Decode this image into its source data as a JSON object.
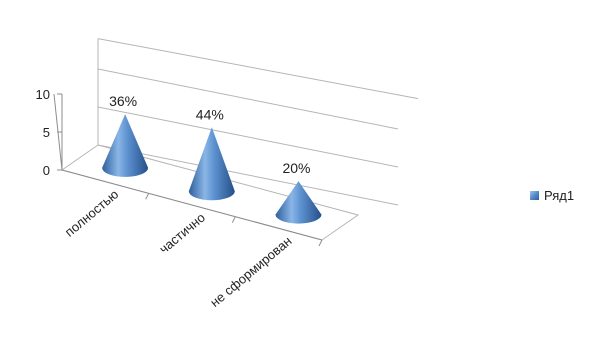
{
  "chart_data": {
    "type": "bar",
    "style": "3d-cone",
    "categories": [
      "полностью",
      "частично",
      "не сформирован"
    ],
    "series": [
      {
        "name": "Ряд1",
        "values": [
          36,
          44,
          20
        ],
        "data_labels": [
          "36%",
          "44%",
          "20%"
        ]
      }
    ],
    "ylim": [
      0,
      10
    ],
    "y_ticks": [
      "0",
      "5",
      "10"
    ],
    "grid": true,
    "legend_position": "right",
    "colors": {
      "series": "#4f86c6",
      "axis": "#8c8c8c",
      "grid": "#b5b5b5",
      "text": "#222222"
    }
  }
}
